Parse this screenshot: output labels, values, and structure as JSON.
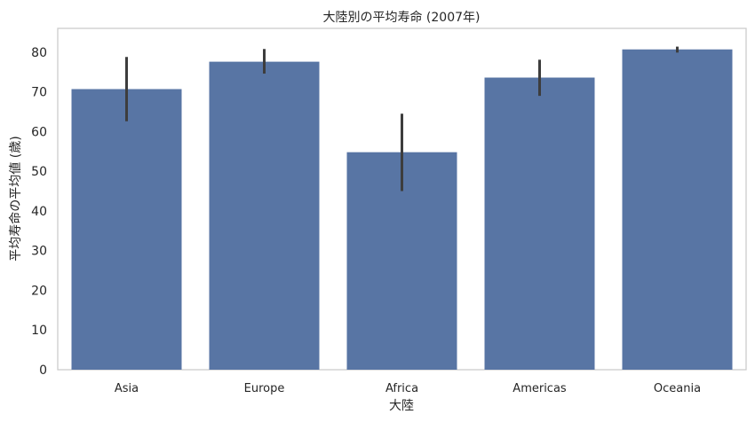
{
  "chart_data": {
    "type": "bar",
    "title": "大陸別の平均寿命 (2007年)",
    "xlabel": "大陸",
    "ylabel": "平均寿命の平均値 (歳)",
    "categories": [
      "Asia",
      "Europe",
      "Africa",
      "Americas",
      "Oceania"
    ],
    "values": [
      70.7,
      77.6,
      54.8,
      73.6,
      80.7
    ],
    "error_low": [
      62.6,
      74.6,
      45.0,
      69.0,
      79.9
    ],
    "error_high": [
      78.8,
      80.8,
      64.5,
      78.1,
      81.4
    ],
    "ylim": [
      0,
      86
    ],
    "yticks": [
      0,
      10,
      20,
      30,
      40,
      50,
      60,
      70,
      80
    ],
    "grid": false,
    "legend": "none",
    "bar_color": "#5875a4",
    "error_color": "#3d3d3d",
    "frame_color": "#cccccc"
  }
}
